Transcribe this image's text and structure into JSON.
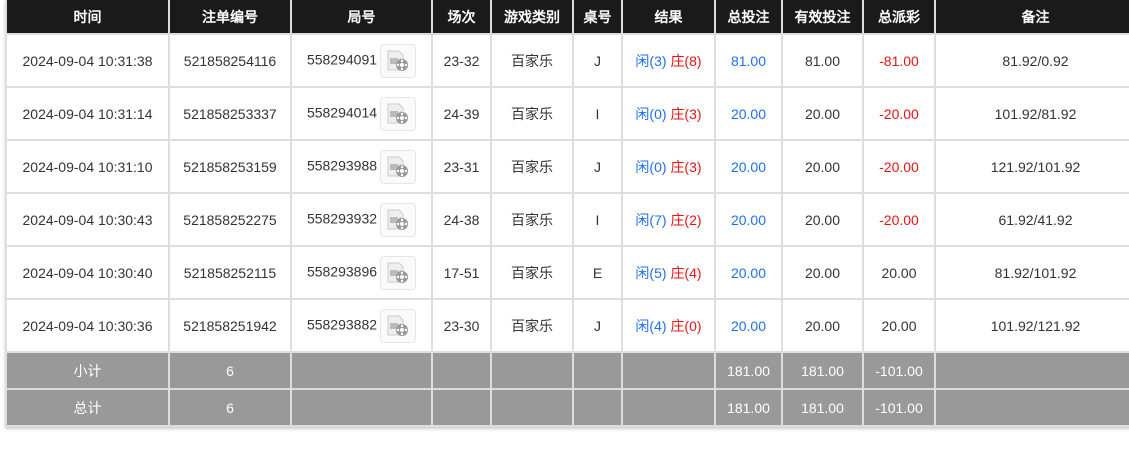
{
  "headers": [
    "时间",
    "注单编号",
    "局号",
    "场次",
    "游戏类别",
    "桌号",
    "结果",
    "总投注",
    "有效投注",
    "总派彩",
    "备注"
  ],
  "rows": [
    {
      "time": "2024-09-04 10:31:38",
      "bet_id": "521858254116",
      "round": "558294091",
      "session": "23-32",
      "game": "百家乐",
      "table": "J",
      "player": "闲(3)",
      "banker": "庄(8)",
      "total_bet": "81.00",
      "valid_bet": "81.00",
      "payout": "-81.00",
      "payout_negative": true,
      "note": "81.92/0.92"
    },
    {
      "time": "2024-09-04 10:31:14",
      "bet_id": "521858253337",
      "round": "558294014",
      "session": "24-39",
      "game": "百家乐",
      "table": "I",
      "player": "闲(0)",
      "banker": "庄(3)",
      "total_bet": "20.00",
      "valid_bet": "20.00",
      "payout": "-20.00",
      "payout_negative": true,
      "note": "101.92/81.92"
    },
    {
      "time": "2024-09-04 10:31:10",
      "bet_id": "521858253159",
      "round": "558293988",
      "session": "23-31",
      "game": "百家乐",
      "table": "J",
      "player": "闲(0)",
      "banker": "庄(3)",
      "total_bet": "20.00",
      "valid_bet": "20.00",
      "payout": "-20.00",
      "payout_negative": true,
      "note": "121.92/101.92"
    },
    {
      "time": "2024-09-04 10:30:43",
      "bet_id": "521858252275",
      "round": "558293932",
      "session": "24-38",
      "game": "百家乐",
      "table": "I",
      "player": "闲(7)",
      "banker": "庄(2)",
      "total_bet": "20.00",
      "valid_bet": "20.00",
      "payout": "-20.00",
      "payout_negative": true,
      "note": "61.92/41.92"
    },
    {
      "time": "2024-09-04 10:30:40",
      "bet_id": "521858252115",
      "round": "558293896",
      "session": "17-51",
      "game": "百家乐",
      "table": "E",
      "player": "闲(5)",
      "banker": "庄(4)",
      "total_bet": "20.00",
      "valid_bet": "20.00",
      "payout": "20.00",
      "payout_negative": false,
      "note": "81.92/101.92"
    },
    {
      "time": "2024-09-04 10:30:36",
      "bet_id": "521858251942",
      "round": "558293882",
      "session": "23-30",
      "game": "百家乐",
      "table": "J",
      "player": "闲(4)",
      "banker": "庄(0)",
      "total_bet": "20.00",
      "valid_bet": "20.00",
      "payout": "20.00",
      "payout_negative": false,
      "note": "101.92/121.92"
    }
  ],
  "summary": [
    {
      "label": "小计",
      "count": "6",
      "total_bet": "181.00",
      "valid_bet": "181.00",
      "payout": "-101.00"
    },
    {
      "label": "总计",
      "count": "6",
      "total_bet": "181.00",
      "valid_bet": "181.00",
      "payout": "-101.00"
    }
  ],
  "icons": {
    "replay": "video-replay-icon"
  },
  "colors": {
    "header_bg": "#1a1a1a",
    "player": "#1e6ff0",
    "banker": "#f01010",
    "negative": "#f01010",
    "summary_bg": "#999999"
  }
}
